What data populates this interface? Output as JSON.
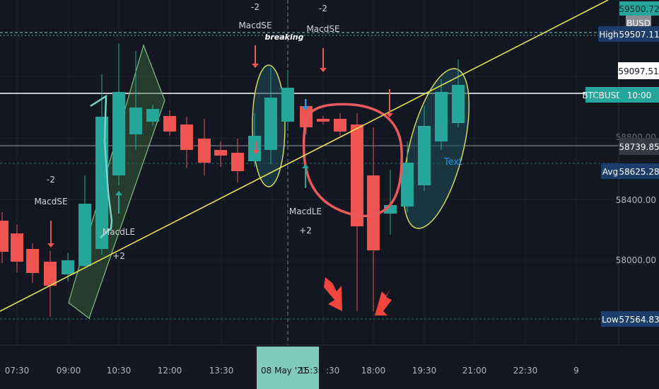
{
  "chart_data": {
    "type": "candlestick",
    "symbol": "BTCBUSD",
    "x_ticks": [
      "07:30",
      "09:00",
      "10:30",
      "12:00",
      "13:30",
      "15:30",
      "18:00",
      "19:30",
      "21:00",
      "22:30",
      "9"
    ],
    "crosshair_date_label": "08 May '21",
    "crosshair_time_label": "15:30",
    "y_ticks": [
      58000.0,
      58400.0,
      58800.0
    ],
    "price_tags": {
      "top": "59500.72",
      "busd": "BUSD",
      "high_label": "High",
      "high_value": "59507.11",
      "cursor_value": "59097.51",
      "symbol_label": "BTCBUSD",
      "symbol_countdown": "10:00",
      "crosshair_value": "58739.85",
      "avg_label": "Avg",
      "avg_value": "58625.28",
      "low_label": "Low",
      "low_value": "57564.83"
    },
    "annotations": {
      "breaking": "breaking",
      "text_label": "Text",
      "signals": [
        {
          "line1": "-2",
          "line2": "MacdSE"
        },
        {
          "line1": "-2",
          "line2": "MacdSE"
        },
        {
          "line1": "-2",
          "line2": "MacdSE"
        },
        {
          "line1": "MacdLE",
          "line2": "+2"
        },
        {
          "line1": "MacdLE",
          "line2": "+2"
        }
      ]
    }
  }
}
